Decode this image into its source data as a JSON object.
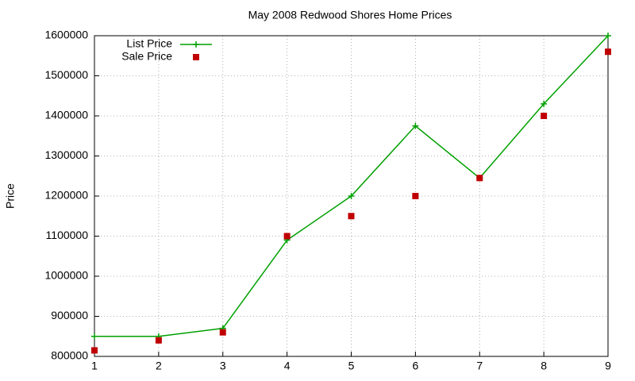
{
  "chart_data": {
    "type": "line",
    "title": "May 2008 Redwood Shores Home Prices",
    "y_label": "Price",
    "x": [
      1,
      2,
      3,
      4,
      5,
      6,
      7,
      8,
      9
    ],
    "series": [
      {
        "name": "List Price",
        "color": "#00a000",
        "mode": "lines+markers",
        "values": [
          850000,
          850000,
          870000,
          1090000,
          1200000,
          1375000,
          1245000,
          1430000,
          1600000
        ]
      },
      {
        "name": "Sale Price",
        "color": "#c00000",
        "mode": "markers",
        "values": [
          815000,
          840000,
          860000,
          1100000,
          1150000,
          1200000,
          1245000,
          1400000,
          1560000
        ]
      }
    ],
    "xlim": [
      1,
      9
    ],
    "xticks": [
      1,
      2,
      3,
      4,
      5,
      6,
      7,
      8,
      9
    ],
    "ylim": [
      800000,
      1600000
    ],
    "yticks": [
      800000,
      900000,
      1000000,
      1100000,
      1200000,
      1300000,
      1400000,
      1500000,
      1600000
    ],
    "grid": true,
    "legend": "top-left"
  }
}
